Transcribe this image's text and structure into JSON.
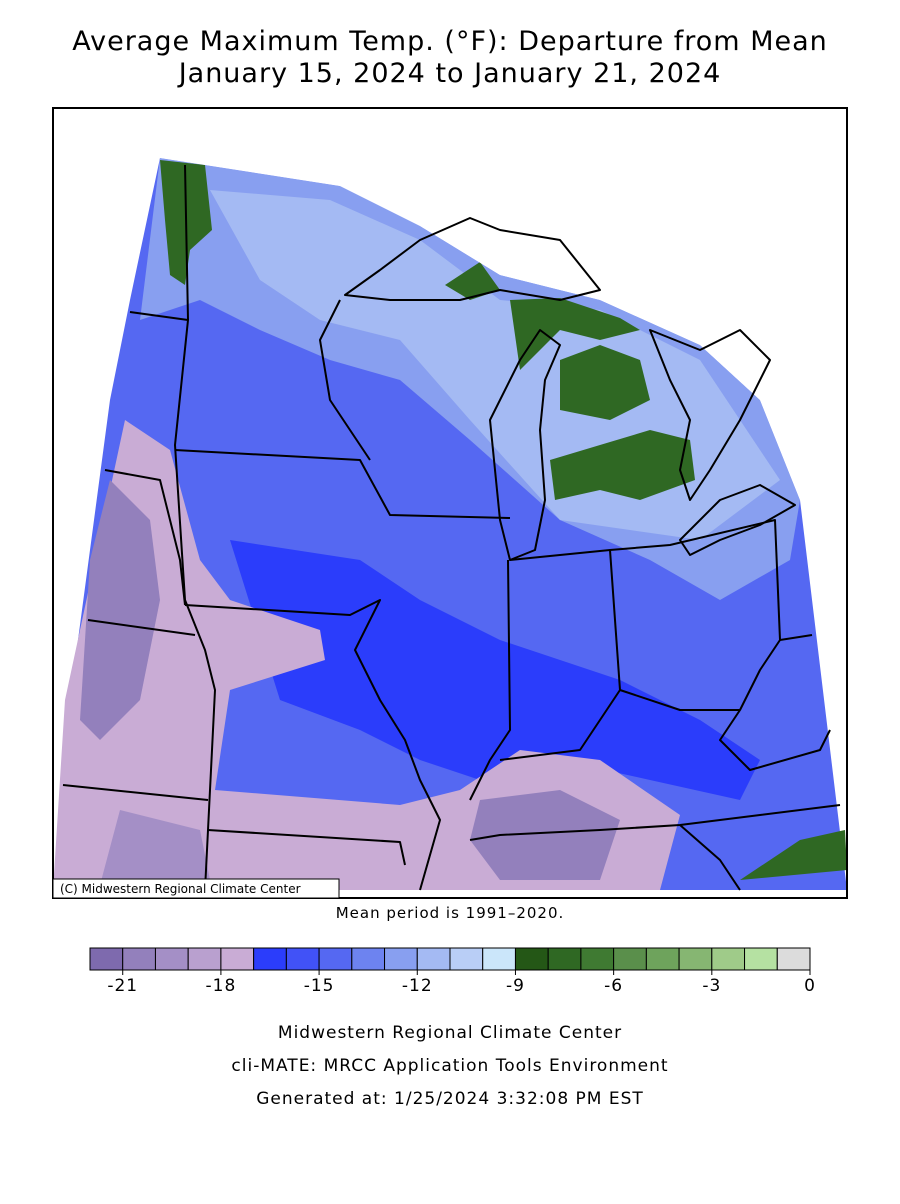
{
  "title": [
    "Average Maximum Temp. (°F): Departure from Mean",
    "January 15, 2024 to January 21, 2024"
  ],
  "map": {
    "credit": "(C) Midwestern Regional Climate Center"
  },
  "note": "Mean period is 1991–2020.",
  "legend": {
    "bins": [
      -22,
      -21,
      -20,
      -19,
      -18,
      -17,
      -16,
      -15,
      -14,
      -13,
      -12,
      -11,
      -10,
      -9,
      -8,
      -7,
      -6,
      -5,
      -4,
      -3,
      -2,
      -1,
      0
    ],
    "colors": [
      "#7e6aae",
      "#9380bc",
      "#a48fc6",
      "#b9a0cf",
      "#c9acd5",
      "#2b3dfb",
      "#4152f7",
      "#5568f2",
      "#6d83f0",
      "#889ff0",
      "#a4baf3",
      "#b9cef6",
      "#cbe6fa",
      "#245716",
      "#2f6823",
      "#3f7a32",
      "#5a8f4b",
      "#6ea35c",
      "#86b672",
      "#9fcb89",
      "#b5e1a2",
      "#dcdcdc"
    ],
    "ticks": [
      -21,
      -18,
      -15,
      -12,
      -9,
      -6,
      -3,
      0
    ]
  },
  "footer": [
    "Midwestern Regional Climate Center",
    "cli-MATE: MRCC Application Tools Environment",
    "Generated at: 1/25/2024 3:32:08 PM EST"
  ]
}
